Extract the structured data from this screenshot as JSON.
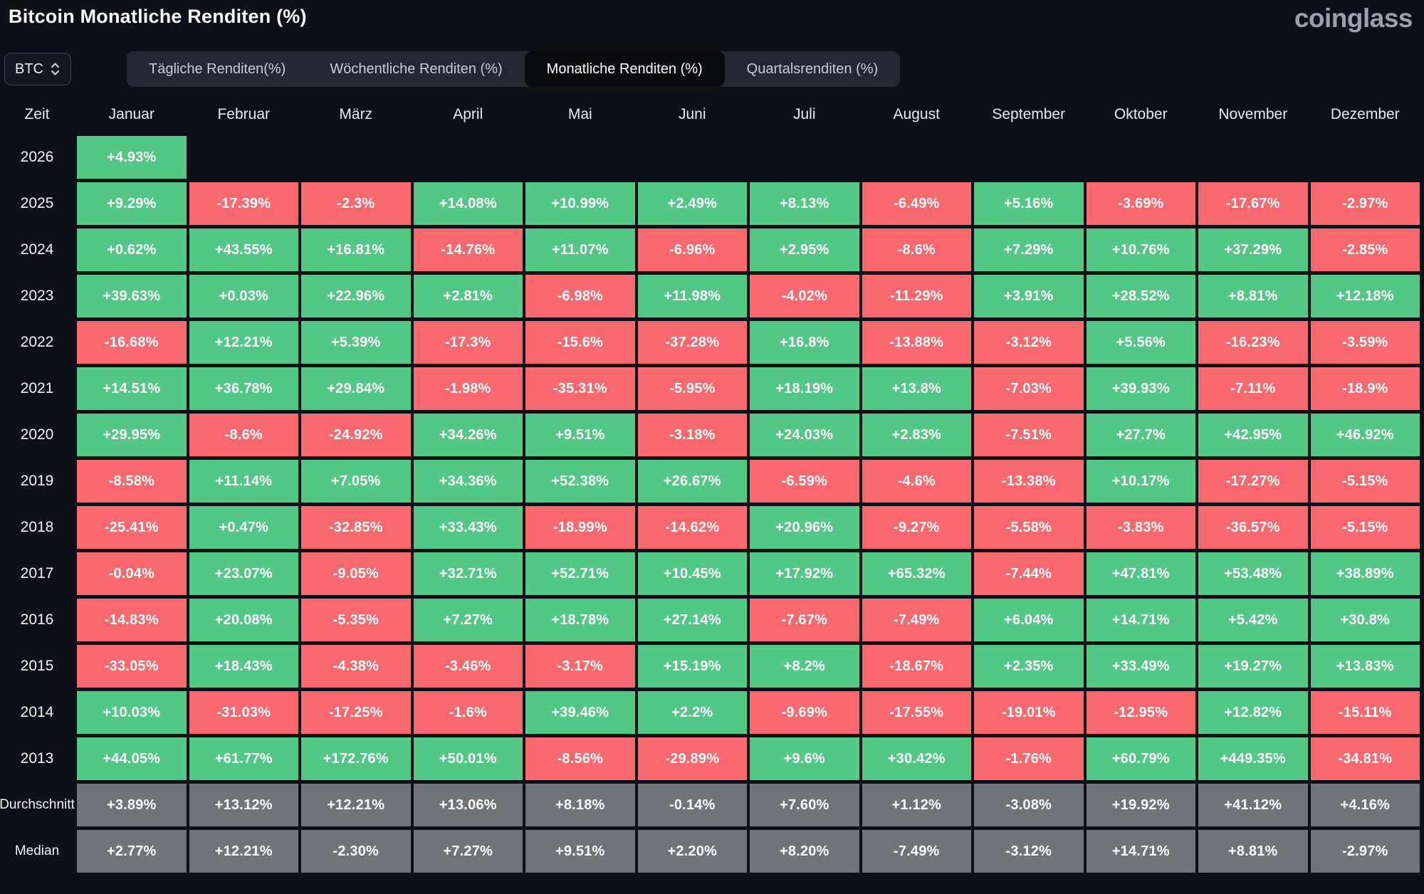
{
  "header": {
    "title": "Bitcoin Monatliche Renditen (%)",
    "logo": "coinglass"
  },
  "controls": {
    "asset": "BTC",
    "tabs": [
      {
        "label": "Tägliche Renditen(%)",
        "active": false
      },
      {
        "label": "Wöchentliche Renditen (%)",
        "active": false
      },
      {
        "label": "Monatliche Renditen (%)",
        "active": true
      },
      {
        "label": "Quartalsrenditen (%)",
        "active": false
      }
    ]
  },
  "chart_data": {
    "type": "heatmap",
    "title": "Bitcoin Monatliche Renditen (%)",
    "row_header": "Zeit",
    "columns": [
      "Januar",
      "Februar",
      "März",
      "April",
      "Mai",
      "Juni",
      "Juli",
      "August",
      "September",
      "Oktober",
      "November",
      "Dezember"
    ],
    "rows": [
      {
        "label": "2026",
        "kind": "year",
        "values": [
          "+4.93%",
          null,
          null,
          null,
          null,
          null,
          null,
          null,
          null,
          null,
          null,
          null
        ]
      },
      {
        "label": "2025",
        "kind": "year",
        "values": [
          "+9.29%",
          "-17.39%",
          "-2.3%",
          "+14.08%",
          "+10.99%",
          "+2.49%",
          "+8.13%",
          "-6.49%",
          "+5.16%",
          "-3.69%",
          "-17.67%",
          "-2.97%"
        ]
      },
      {
        "label": "2024",
        "kind": "year",
        "values": [
          "+0.62%",
          "+43.55%",
          "+16.81%",
          "-14.76%",
          "+11.07%",
          "-6.96%",
          "+2.95%",
          "-8.6%",
          "+7.29%",
          "+10.76%",
          "+37.29%",
          "-2.85%"
        ]
      },
      {
        "label": "2023",
        "kind": "year",
        "values": [
          "+39.63%",
          "+0.03%",
          "+22.96%",
          "+2.81%",
          "-6.98%",
          "+11.98%",
          "-4.02%",
          "-11.29%",
          "+3.91%",
          "+28.52%",
          "+8.81%",
          "+12.18%"
        ]
      },
      {
        "label": "2022",
        "kind": "year",
        "values": [
          "-16.68%",
          "+12.21%",
          "+5.39%",
          "-17.3%",
          "-15.6%",
          "-37.28%",
          "+16.8%",
          "-13.88%",
          "-3.12%",
          "+5.56%",
          "-16.23%",
          "-3.59%"
        ]
      },
      {
        "label": "2021",
        "kind": "year",
        "values": [
          "+14.51%",
          "+36.78%",
          "+29.84%",
          "-1.98%",
          "-35.31%",
          "-5.95%",
          "+18.19%",
          "+13.8%",
          "-7.03%",
          "+39.93%",
          "-7.11%",
          "-18.9%"
        ]
      },
      {
        "label": "2020",
        "kind": "year",
        "values": [
          "+29.95%",
          "-8.6%",
          "-24.92%",
          "+34.26%",
          "+9.51%",
          "-3.18%",
          "+24.03%",
          "+2.83%",
          "-7.51%",
          "+27.7%",
          "+42.95%",
          "+46.92%"
        ]
      },
      {
        "label": "2019",
        "kind": "year",
        "values": [
          "-8.58%",
          "+11.14%",
          "+7.05%",
          "+34.36%",
          "+52.38%",
          "+26.67%",
          "-6.59%",
          "-4.6%",
          "-13.38%",
          "+10.17%",
          "-17.27%",
          "-5.15%"
        ]
      },
      {
        "label": "2018",
        "kind": "year",
        "values": [
          "-25.41%",
          "+0.47%",
          "-32.85%",
          "+33.43%",
          "-18.99%",
          "-14.62%",
          "+20.96%",
          "-9.27%",
          "-5.58%",
          "-3.83%",
          "-36.57%",
          "-5.15%"
        ]
      },
      {
        "label": "2017",
        "kind": "year",
        "values": [
          "-0.04%",
          "+23.07%",
          "-9.05%",
          "+32.71%",
          "+52.71%",
          "+10.45%",
          "+17.92%",
          "+65.32%",
          "-7.44%",
          "+47.81%",
          "+53.48%",
          "+38.89%"
        ]
      },
      {
        "label": "2016",
        "kind": "year",
        "values": [
          "-14.83%",
          "+20.08%",
          "-5.35%",
          "+7.27%",
          "+18.78%",
          "+27.14%",
          "-7.67%",
          "-7.49%",
          "+6.04%",
          "+14.71%",
          "+5.42%",
          "+30.8%"
        ]
      },
      {
        "label": "2015",
        "kind": "year",
        "values": [
          "-33.05%",
          "+18.43%",
          "-4.38%",
          "-3.46%",
          "-3.17%",
          "+15.19%",
          "+8.2%",
          "-18.67%",
          "+2.35%",
          "+33.49%",
          "+19.27%",
          "+13.83%"
        ]
      },
      {
        "label": "2014",
        "kind": "year",
        "values": [
          "+10.03%",
          "-31.03%",
          "-17.25%",
          "-1.6%",
          "+39.46%",
          "+2.2%",
          "-9.69%",
          "-17.55%",
          "-19.01%",
          "-12.95%",
          "+12.82%",
          "-15.11%"
        ]
      },
      {
        "label": "2013",
        "kind": "year",
        "values": [
          "+44.05%",
          "+61.77%",
          "+172.76%",
          "+50.01%",
          "-8.56%",
          "-29.89%",
          "+9.6%",
          "+30.42%",
          "-1.76%",
          "+60.79%",
          "+449.35%",
          "-34.81%"
        ]
      },
      {
        "label": "Durchschnitt",
        "kind": "summary",
        "values": [
          "+3.89%",
          "+13.12%",
          "+12.21%",
          "+13.06%",
          "+8.18%",
          "-0.14%",
          "+7.60%",
          "+1.12%",
          "-3.08%",
          "+19.92%",
          "+41.12%",
          "+4.16%"
        ]
      },
      {
        "label": "Median",
        "kind": "summary",
        "values": [
          "+2.77%",
          "+12.21%",
          "-2.30%",
          "+7.27%",
          "+9.51%",
          "+2.20%",
          "+8.20%",
          "-7.49%",
          "-3.12%",
          "+14.71%",
          "+8.81%",
          "-2.97%"
        ]
      }
    ],
    "legend": {
      "positive_color": "#53c786",
      "negative_color": "#f7696e",
      "summary_color": "#6f7478",
      "background_color": "#0d1016"
    }
  }
}
